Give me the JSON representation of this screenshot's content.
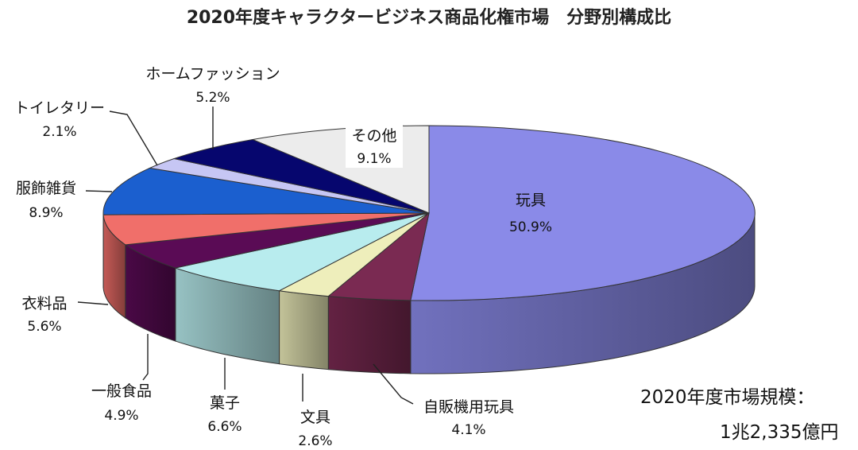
{
  "chart_data": {
    "type": "pie",
    "title": "2020年度キャラクタービジネス商品化権市場　分野別構成比",
    "unit": "%",
    "slices": [
      {
        "label": "玩具",
        "value": 50.9,
        "value_text": "50.9%",
        "color": "#8a8ae8"
      },
      {
        "label": "自販機用玩具",
        "value": 4.1,
        "value_text": "4.1%",
        "color": "#7a2a52"
      },
      {
        "label": "文具",
        "value": 2.6,
        "value_text": "2.6%",
        "color": "#eeeebb"
      },
      {
        "label": "菓子",
        "value": 6.6,
        "value_text": "6.6%",
        "color": "#b8ecee"
      },
      {
        "label": "一般食品",
        "value": 4.9,
        "value_text": "4.9%",
        "color": "#5a0b55"
      },
      {
        "label": "衣料品",
        "value": 5.6,
        "value_text": "5.6%",
        "color": "#f06f6a"
      },
      {
        "label": "服飾雑貨",
        "value": 8.9,
        "value_text": "8.9%",
        "color": "#1b5fcf"
      },
      {
        "label": "トイレタリー",
        "value": 2.1,
        "value_text": "2.1%",
        "color": "#c6c6f4"
      },
      {
        "label": "ホームファッション",
        "value": 5.2,
        "value_text": "5.2%",
        "color": "#06066e"
      },
      {
        "label": "その他",
        "value": 9.1,
        "value_text": "9.1%",
        "color": "#ececec"
      }
    ],
    "market_size_label": "2020年度市場規模：",
    "market_size_value": "1兆2,335億円"
  }
}
